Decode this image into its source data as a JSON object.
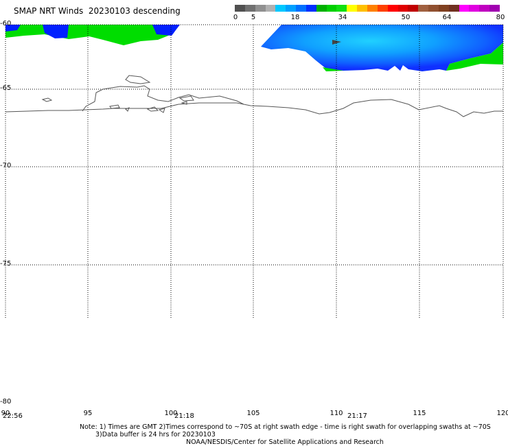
{
  "title": "SMAP NRT Winds  20230103 descending",
  "colorbar": {
    "labels": [
      "0",
      "5",
      "18",
      "34",
      "50",
      "64",
      "80"
    ],
    "colors": [
      "#505050",
      "#707070",
      "#909090",
      "#b0b0b0",
      "#00c8ff",
      "#00a0ff",
      "#0070ff",
      "#0030ff",
      "#00b000",
      "#00d000",
      "#10e010",
      "#ffff00",
      "#ffc000",
      "#ff8000",
      "#ff4000",
      "#ff0000",
      "#e00000",
      "#c00000",
      "#a06040",
      "#905030",
      "#804020",
      "#703020",
      "#ff00ff",
      "#e000e0",
      "#c000c0",
      "#a000b0"
    ]
  },
  "axes": {
    "lat_labels": [
      "-60",
      "-65",
      "-70",
      "-75",
      "-80"
    ],
    "lon_labels": [
      "90",
      "95",
      "100",
      "105",
      "110",
      "115",
      "120"
    ]
  },
  "swath_times": [
    "22:56",
    "21:18",
    "21:17"
  ],
  "note": {
    "line1": "Note: 1) Times are GMT 2)Times correspond to ~70S at right swath edge - time is right swath for overlapping swaths at ~70S",
    "line2": "3)Data buffer is 24 hrs for 20230103",
    "line3": "NOAA/NESDIS/Center for Satellite Applications and Research"
  }
}
